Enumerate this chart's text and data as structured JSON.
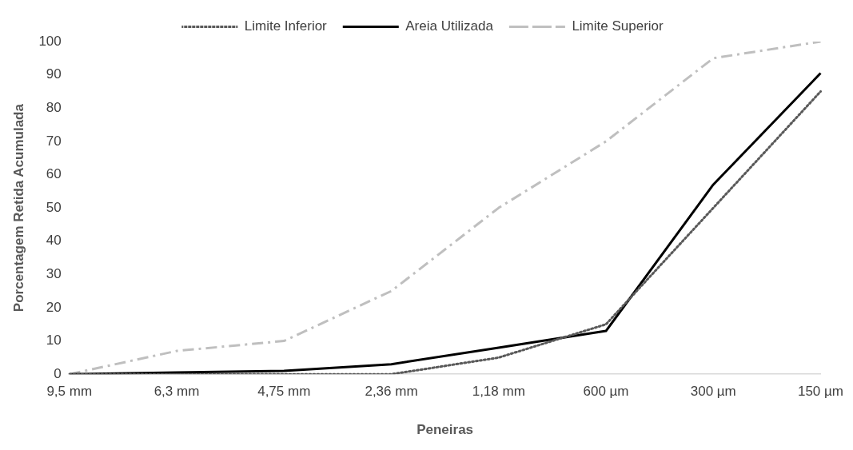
{
  "chart_data": {
    "type": "line",
    "xlabel": "Peneiras",
    "ylabel": "Porcentagem Retida Acumulada",
    "categories": [
      "9,5 mm",
      "6,3 mm",
      "4,75 mm",
      "2,36 mm",
      "1,18 mm",
      "600 µm",
      "300 µm",
      "150 µm"
    ],
    "ylim": [
      0,
      100
    ],
    "yticks": [
      0,
      10,
      20,
      30,
      40,
      50,
      60,
      70,
      80,
      90,
      100
    ],
    "grid": false,
    "legend": "top",
    "marker": "none",
    "series": [
      {
        "name": "Limite Inferior",
        "color": "#595959",
        "line_style": "dotted",
        "values": [
          0,
          0,
          0,
          0,
          5,
          15,
          50,
          85
        ]
      },
      {
        "name": "Areia Utilizada",
        "color": "#000000",
        "line_style": "solid",
        "values": [
          0,
          0.5,
          1,
          3,
          8,
          13,
          57,
          90.5
        ]
      },
      {
        "name": "Limite Superior",
        "color": "#bfbfbf",
        "line_style": "dashdot",
        "values": [
          0,
          7,
          10,
          25,
          50,
          70,
          95,
          100
        ]
      }
    ]
  }
}
